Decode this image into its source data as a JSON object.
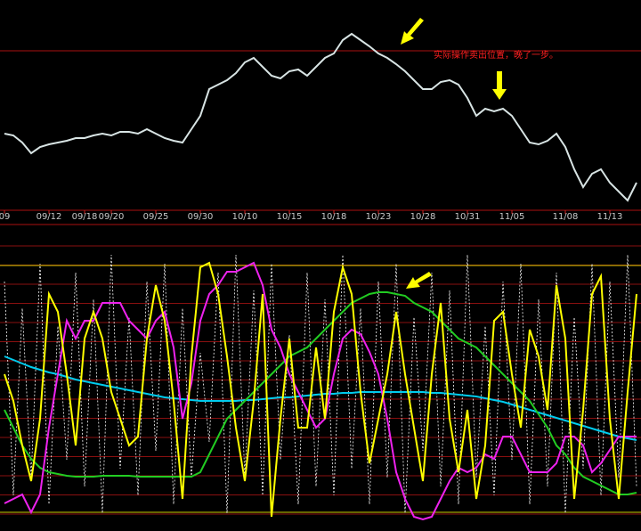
{
  "chart_data": [
    {
      "type": "line",
      "annotation": "实际操作卖出位置，晚了一步。",
      "categories": [
        "09",
        null,
        null,
        null,
        null,
        "09/12",
        null,
        null,
        null,
        "09/18",
        null,
        null,
        "09/20",
        null,
        null,
        null,
        null,
        "09/25",
        null,
        null,
        null,
        null,
        "09/30",
        null,
        null,
        null,
        null,
        "10/10",
        null,
        null,
        null,
        null,
        "10/15",
        null,
        null,
        null,
        null,
        "10/18",
        null,
        null,
        null,
        null,
        "10/23",
        null,
        null,
        null,
        null,
        "10/28",
        null,
        null,
        null,
        null,
        "10/31",
        null,
        null,
        null,
        null,
        "11/05",
        null,
        null,
        null,
        null,
        null,
        "11/08",
        null,
        null,
        null,
        null,
        "11/13",
        null,
        null,
        null
      ],
      "series": [
        {
          "color": "#d8e4e4",
          "values": [
            90,
            88,
            80,
            68,
            75,
            78,
            80,
            82,
            85,
            85,
            88,
            90,
            88,
            92,
            92,
            90,
            95,
            90,
            85,
            82,
            80,
            95,
            110,
            140,
            145,
            150,
            158,
            170,
            175,
            165,
            155,
            152,
            160,
            162,
            155,
            165,
            175,
            180,
            195,
            202,
            195,
            188,
            180,
            175,
            168,
            160,
            150,
            140,
            140,
            148,
            150,
            145,
            130,
            110,
            118,
            115,
            118,
            110,
            95,
            80,
            78,
            82,
            90,
            75,
            50,
            30,
            45,
            50,
            35,
            25,
            15,
            35
          ]
        }
      ],
      "ylim": [
        0,
        240
      ]
    },
    {
      "type": "line",
      "series": [
        {
          "color": "#ffffff",
          "dashed": true,
          "values": [
            280,
            40,
            250,
            60,
            300,
            30,
            230,
            80,
            290,
            50,
            260,
            20,
            310,
            70,
            240,
            40,
            280,
            90,
            300,
            30,
            250,
            60,
            200,
            100,
            290,
            20,
            310,
            60,
            270,
            40,
            300,
            80,
            220,
            30,
            290,
            50,
            260,
            40,
            310,
            70,
            250,
            30,
            280,
            60,
            300,
            20,
            240,
            90,
            290,
            50,
            270,
            30,
            310,
            60,
            230,
            40,
            280,
            80,
            300,
            30,
            260,
            50,
            290,
            20,
            240,
            70,
            300,
            40,
            280,
            60,
            310,
            50
          ]
        },
        {
          "color": "#00ccee",
          "values": [
            196,
            192,
            188,
            184,
            181,
            178,
            176,
            173,
            170,
            168,
            166,
            164,
            162,
            160,
            158,
            156,
            154,
            152,
            150,
            149,
            148,
            147,
            146,
            146,
            146,
            146,
            146,
            147,
            147,
            148,
            149,
            150,
            150,
            151,
            152,
            153,
            154,
            154,
            155,
            155,
            156,
            156,
            156,
            156,
            156,
            156,
            156,
            156,
            155,
            155,
            154,
            153,
            152,
            151,
            149,
            147,
            145,
            142,
            139,
            136,
            133,
            130,
            127,
            124,
            121,
            118,
            115,
            112,
            109,
            106,
            104,
            102
          ]
        },
        {
          "color": "#22cc22",
          "values": [
            136,
            116,
            96,
            81,
            71,
            66,
            64,
            62,
            61,
            61,
            61,
            62,
            62,
            62,
            62,
            61,
            61,
            61,
            61,
            61,
            61,
            61,
            66,
            86,
            106,
            126,
            136,
            146,
            156,
            166,
            176,
            186,
            196,
            201,
            206,
            216,
            226,
            236,
            246,
            256,
            261,
            266,
            268,
            268,
            266,
            264,
            256,
            251,
            246,
            236,
            226,
            216,
            211,
            206,
            196,
            186,
            176,
            166,
            156,
            146,
            131,
            116,
            96,
            86,
            71,
            61,
            56,
            51,
            46,
            41,
            41,
            43
          ]
        },
        {
          "color": "#ee22ee",
          "values": [
            31,
            36,
            41,
            21,
            41,
            116,
            176,
            236,
            216,
            236,
            236,
            256,
            256,
            256,
            236,
            226,
            216,
            236,
            246,
            206,
            126,
            166,
            236,
            266,
            276,
            291,
            291,
            296,
            301,
            276,
            226,
            206,
            176,
            156,
            136,
            116,
            126,
            176,
            216,
            226,
            221,
            201,
            176,
            126,
            66,
            36,
            16,
            13,
            16,
            36,
            56,
            71,
            66,
            71,
            86,
            81,
            106,
            106,
            86,
            66,
            66,
            66,
            76,
            106,
            106,
            96,
            66,
            76,
            91,
            106,
            106,
            106
          ]
        },
        {
          "color": "#ffff00",
          "values": [
            176,
            146,
            96,
            56,
            126,
            266,
            246,
            176,
            96,
            216,
            246,
            216,
            156,
            126,
            96,
            106,
            216,
            276,
            236,
            146,
            36,
            196,
            296,
            301,
            266,
            196,
            116,
            56,
            146,
            266,
            16,
            126,
            216,
            116,
            116,
            206,
            126,
            246,
            296,
            266,
            156,
            76,
            126,
            176,
            246,
            176,
            116,
            56,
            176,
            256,
            126,
            66,
            136,
            36,
            96,
            236,
            246,
            176,
            116,
            226,
            196,
            136,
            276,
            216,
            36,
            136,
            266,
            286,
            126,
            36,
            156,
            266
          ]
        }
      ],
      "ylim": [
        0,
        336
      ]
    }
  ]
}
